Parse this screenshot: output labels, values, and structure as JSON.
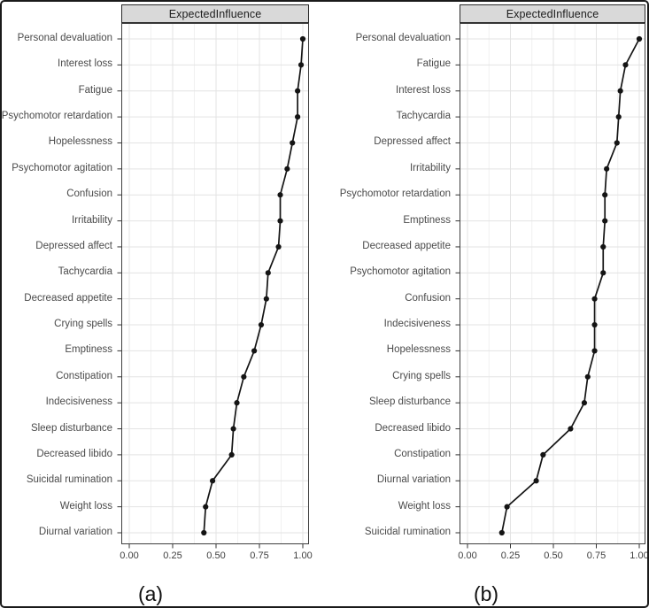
{
  "figure": {
    "background": "#ffffff",
    "border_color": "#1a1a1a"
  },
  "colors": {
    "strip_fill": "#d9d9d9",
    "strip_border": "#2a2a2a",
    "panel_border": "#3f3f3f",
    "grid_major": "#e3e3e3",
    "grid_minor": "#f1f1f1",
    "axis_text": "#404040",
    "category_text": "#4a4a4a",
    "tick_mark": "#333333",
    "data": "#141414"
  },
  "chart_data": [
    {
      "type": "scatter",
      "subtype": "horizontal-dot-line",
      "title": "ExpectedInfluence",
      "caption": "(a)",
      "xlabel": "",
      "ylabel": "",
      "xlim": [
        0,
        1
      ],
      "xticks": [
        0,
        0.25,
        0.5,
        0.75,
        1
      ],
      "xtick_labels": [
        "0.00",
        "0.25",
        "0.50",
        "0.75",
        "1.00"
      ],
      "grid": "vertical major+minor, horizontal major",
      "legend": "none",
      "categories": [
        "Personal devaluation",
        "Interest loss",
        "Fatigue",
        "Psychomotor retardation",
        "Hopelessness",
        "Psychomotor agitation",
        "Confusion",
        "Irritability",
        "Depressed affect",
        "Tachycardia",
        "Decreased appetite",
        "Crying spells",
        "Emptiness",
        "Constipation",
        "Indecisiveness",
        "Sleep disturbance",
        "Decreased libido",
        "Suicidal rumination",
        "Weight loss",
        "Diurnal variation"
      ],
      "values": [
        1.0,
        0.99,
        0.97,
        0.97,
        0.94,
        0.91,
        0.87,
        0.87,
        0.86,
        0.8,
        0.79,
        0.76,
        0.72,
        0.66,
        0.62,
        0.6,
        0.59,
        0.48,
        0.44,
        0.43
      ]
    },
    {
      "type": "scatter",
      "subtype": "horizontal-dot-line",
      "title": "ExpectedInfluence",
      "caption": "(b)",
      "xlabel": "",
      "ylabel": "",
      "xlim": [
        0,
        1
      ],
      "xticks": [
        0,
        0.25,
        0.5,
        0.75,
        1
      ],
      "xtick_labels": [
        "0.00",
        "0.25",
        "0.50",
        "0.75",
        "1.00"
      ],
      "grid": "vertical major+minor, horizontal major",
      "legend": "none",
      "categories": [
        "Personal devaluation",
        "Fatigue",
        "Interest loss",
        "Tachycardia",
        "Depressed affect",
        "Irritability",
        "Psychomotor retardation",
        "Emptiness",
        "Decreased appetite",
        "Psychomotor agitation",
        "Confusion",
        "Indecisiveness",
        "Hopelessness",
        "Crying spells",
        "Sleep disturbance",
        "Decreased libido",
        "Constipation",
        "Diurnal variation",
        "Weight loss",
        "Suicidal rumination"
      ],
      "values": [
        1.0,
        0.92,
        0.89,
        0.88,
        0.87,
        0.81,
        0.8,
        0.8,
        0.79,
        0.79,
        0.74,
        0.74,
        0.74,
        0.7,
        0.68,
        0.6,
        0.44,
        0.4,
        0.23,
        0.2
      ]
    }
  ]
}
